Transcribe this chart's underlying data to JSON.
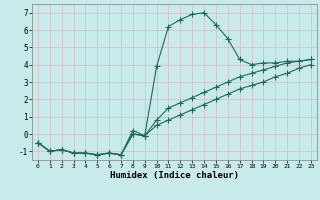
{
  "xlabel": "Humidex (Indice chaleur)",
  "background_color": "#c8eaea",
  "grid_color": "#b0d0d0",
  "line_color": "#1a6b5a",
  "xlim": [
    -0.5,
    23.5
  ],
  "ylim": [
    -1.5,
    7.5
  ],
  "xticks": [
    0,
    1,
    2,
    3,
    4,
    5,
    6,
    7,
    8,
    9,
    10,
    11,
    12,
    13,
    14,
    15,
    16,
    17,
    18,
    19,
    20,
    21,
    22,
    23
  ],
  "yticks": [
    -1,
    0,
    1,
    2,
    3,
    4,
    5,
    6,
    7
  ],
  "y_wavy": [
    -0.5,
    -1.0,
    -0.9,
    -1.1,
    -1.1,
    -1.2,
    -1.1,
    -1.2,
    0.0,
    -0.1,
    3.9,
    6.2,
    6.6,
    6.9,
    7.0,
    6.3,
    5.5,
    4.3,
    4.0,
    4.1,
    4.1,
    4.2,
    4.2,
    4.3
  ],
  "y_lin1": [
    -0.5,
    -1.0,
    -0.9,
    -1.1,
    -1.1,
    -1.2,
    -1.1,
    -1.2,
    0.0,
    -0.1,
    0.5,
    0.8,
    1.1,
    1.4,
    1.7,
    2.0,
    2.3,
    2.6,
    2.8,
    3.0,
    3.3,
    3.5,
    3.8,
    4.0
  ],
  "y_lin2": [
    -0.5,
    -1.0,
    -0.9,
    -1.1,
    -1.1,
    -1.2,
    -1.1,
    -1.2,
    0.2,
    -0.1,
    0.8,
    1.5,
    1.8,
    2.1,
    2.4,
    2.7,
    3.0,
    3.3,
    3.5,
    3.7,
    3.9,
    4.1,
    4.2,
    4.3
  ]
}
